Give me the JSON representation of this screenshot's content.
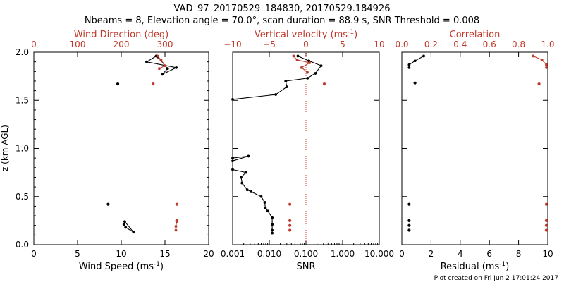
{
  "title_line1": "VAD_97_20170529_184830, 20170529.184926",
  "title_line2": "Nbeams = 8, Elevation angle = 70.0°, scan duration = 88.9 s, SNR Threshold = 0.008",
  "footer": "Plot created on Fri Jun  2 17:01:24 2017",
  "colors": {
    "black": "#000000",
    "red": "#c0392b",
    "dotted_red": "#d04030"
  },
  "chart_data": [
    {
      "type": "scatter",
      "panel": "left",
      "ylabel": "z (km AGL)",
      "ylim": [
        0,
        2
      ],
      "yticks": [
        0.0,
        0.5,
        1.0,
        1.5,
        2.0
      ],
      "ytick_labels": [
        "0.0",
        "0.5",
        "1.0",
        "1.5",
        "2.0"
      ],
      "bottom_axis": {
        "label": "Wind Speed (ms",
        "label_sup": "-1",
        "label_end": ")",
        "lim": [
          0,
          20
        ],
        "ticks": [
          0,
          5,
          10,
          15,
          20
        ],
        "tick_labels": [
          "0",
          "5",
          "10",
          "15",
          "20"
        ]
      },
      "top_axis": {
        "label": "Wind Direction (deg)",
        "lim": [
          0,
          400
        ],
        "ticks": [
          0,
          100,
          200,
          300
        ],
        "tick_labels": [
          "0",
          "100",
          "200",
          "300"
        ]
      },
      "series": [
        {
          "axis": "bottom",
          "color": "black",
          "connected": [
            [
              [
                14.0,
                1.96
              ],
              [
                12.9,
                1.9
              ],
              [
                16.3,
                1.84
              ],
              [
                14.7,
                1.77
              ],
              [
                15.3,
                1.83
              ],
              [
                14.2,
                1.95
              ]
            ],
            [
              [
                10.3,
                0.21
              ],
              [
                10.5,
                0.18
              ],
              [
                11.4,
                0.13
              ],
              [
                10.4,
                0.24
              ]
            ]
          ],
          "isolated": [
            [
              9.6,
              1.67
            ],
            [
              8.5,
              0.42
            ]
          ]
        },
        {
          "axis": "top",
          "color": "red",
          "connected": [
            [
              [
                283,
                1.96
              ],
              [
                291,
                1.92
              ],
              [
                300,
                1.86
              ],
              [
                287,
                1.83
              ]
            ],
            [
              [
                327,
                0.24
              ],
              [
                325,
                0.19
              ],
              [
                325,
                0.15
              ]
            ]
          ],
          "isolated": [
            [
              273,
              1.67
            ],
            [
              327,
              0.42
            ],
            [
              327,
              0.25
            ]
          ]
        }
      ]
    },
    {
      "type": "scatter",
      "panel": "middle",
      "ylim": [
        0,
        2
      ],
      "bottom_axis": {
        "label": "SNR",
        "scale": "log",
        "lim": [
          0.001,
          10
        ],
        "ticks": [
          0.001,
          0.01,
          0.1,
          1,
          10
        ],
        "tick_labels": [
          "0.001",
          "0.010",
          "0.100",
          "1.000",
          "10.000"
        ]
      },
      "top_axis": {
        "label": "Vertical velocity (ms",
        "label_sup": "-1",
        "label_end": ")",
        "lim": [
          -10,
          10
        ],
        "ticks": [
          -10,
          -5,
          0,
          5,
          10
        ],
        "tick_labels": [
          "−10",
          "−5",
          "0",
          "5",
          "10"
        ]
      },
      "series": [
        {
          "axis": "bottom",
          "color": "black",
          "connected": [
            [
              [
                0.06,
                1.96
              ],
              [
                0.12,
                1.91
              ],
              [
                0.26,
                1.86
              ],
              [
                0.18,
                1.78
              ],
              [
                0.11,
                1.73
              ],
              [
                0.028,
                1.7
              ],
              [
                0.03,
                1.64
              ],
              [
                0.015,
                1.56
              ],
              [
                0.001,
                1.51
              ]
            ],
            [
              [
                0.001,
                0.9
              ],
              [
                0.0027,
                0.92
              ],
              [
                0.001,
                0.87
              ]
            ],
            [
              [
                0.001,
                0.78
              ],
              [
                0.0023,
                0.75
              ],
              [
                0.0017,
                0.7
              ],
              [
                0.0018,
                0.64
              ],
              [
                0.0025,
                0.57
              ],
              [
                0.0032,
                0.55
              ],
              [
                0.006,
                0.5
              ],
              [
                0.0075,
                0.44
              ],
              [
                0.0078,
                0.38
              ],
              [
                0.0091,
                0.35
              ],
              [
                0.012,
                0.28
              ],
              [
                0.012,
                0.21
              ],
              [
                0.012,
                0.15
              ],
              [
                0.012,
                0.12
              ]
            ]
          ],
          "isolated": []
        },
        {
          "axis": "top",
          "color": "red",
          "connected": [
            [
              [
                -1.7,
                1.96
              ],
              [
                -1.2,
                1.92
              ],
              [
                0.5,
                1.89
              ],
              [
                -0.6,
                1.84
              ],
              [
                0.2,
                1.79
              ]
            ]
          ],
          "isolated": [
            [
              2.5,
              1.67
            ],
            [
              -2.2,
              0.42
            ],
            [
              -2.2,
              0.25
            ],
            [
              -2.2,
              0.2
            ],
            [
              -2.2,
              0.15
            ]
          ]
        }
      ],
      "reference_line": {
        "axis": "bottom",
        "value": 0.1,
        "style": "dotted",
        "color": "red"
      }
    },
    {
      "type": "scatter",
      "panel": "right",
      "ylim": [
        0,
        2
      ],
      "bottom_axis": {
        "label": "Residual (ms",
        "label_sup": "-1",
        "label_end": ")",
        "lim": [
          0,
          10
        ],
        "ticks": [
          0,
          2,
          4,
          6,
          8,
          10
        ],
        "tick_labels": [
          "0",
          "2",
          "4",
          "6",
          "8",
          "10"
        ]
      },
      "top_axis": {
        "label": "Correlation",
        "lim": [
          0,
          1
        ],
        "ticks": [
          0.0,
          0.2,
          0.4,
          0.6,
          0.8,
          1.0
        ],
        "tick_labels": [
          "0.0",
          "0.2",
          "0.4",
          "0.6",
          "0.8",
          "1.0"
        ]
      },
      "series": [
        {
          "axis": "bottom",
          "color": "black",
          "connected": [
            [
              [
                1.5,
                1.96
              ],
              [
                0.9,
                1.91
              ],
              [
                0.5,
                1.87
              ],
              [
                0.5,
                1.84
              ]
            ]
          ],
          "isolated": [
            [
              0.9,
              1.68
            ],
            [
              0.5,
              0.42
            ],
            [
              0.5,
              0.25
            ],
            [
              0.5,
              0.2
            ],
            [
              0.5,
              0.15
            ]
          ]
        },
        {
          "axis": "top",
          "color": "red",
          "connected": [
            [
              [
                0.9,
                1.96
              ],
              [
                0.96,
                1.92
              ],
              [
                0.99,
                1.87
              ],
              [
                0.99,
                1.84
              ]
            ]
          ],
          "isolated": [
            [
              0.94,
              1.67
            ],
            [
              0.99,
              0.42
            ],
            [
              0.99,
              0.25
            ],
            [
              0.99,
              0.2
            ],
            [
              0.99,
              0.15
            ]
          ]
        }
      ]
    }
  ]
}
